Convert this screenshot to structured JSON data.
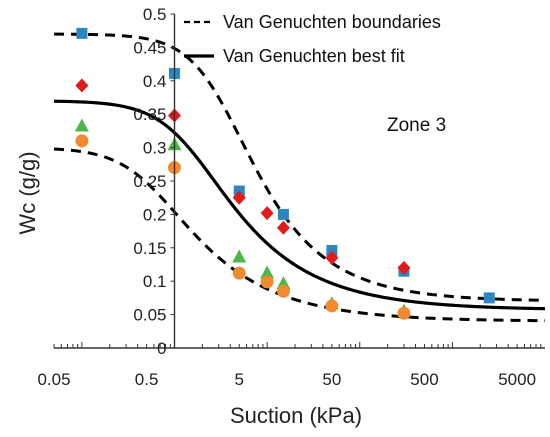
{
  "chart_data": {
    "type": "scatter",
    "title": "",
    "xlabel": "Suction (kPa)",
    "ylabel": "Wc (g/g)",
    "xscale": "log",
    "xlim": [
      0.05,
      10000
    ],
    "ylim": [
      0,
      0.5
    ],
    "xticks": [
      {
        "value": 0.05,
        "label": "0.05"
      },
      {
        "value": 0.5,
        "label": "0.5"
      },
      {
        "value": 5,
        "label": "5"
      },
      {
        "value": 50,
        "label": "50"
      },
      {
        "value": 500,
        "label": "500"
      },
      {
        "value": 5000,
        "label": "5000"
      }
    ],
    "yticks": [
      {
        "value": 0,
        "label": "0"
      },
      {
        "value": 0.05,
        "label": "0.05"
      },
      {
        "value": 0.1,
        "label": "0.1"
      },
      {
        "value": 0.15,
        "label": "0.15"
      },
      {
        "value": 0.2,
        "label": "0.2"
      },
      {
        "value": 0.25,
        "label": "0.25"
      },
      {
        "value": 0.3,
        "label": "0.3"
      },
      {
        "value": 0.35,
        "label": "0.35"
      },
      {
        "value": 0.4,
        "label": "0.4"
      },
      {
        "value": 0.45,
        "label": "0.45"
      },
      {
        "value": 0.5,
        "label": "0.5"
      }
    ],
    "y_axis_at_x": 1,
    "grid": false,
    "legend_position": "top-right",
    "legend": [
      {
        "label": "Van Genuchten boundaries",
        "style": "dashed",
        "color": "#000000"
      },
      {
        "label": "Van Genuchten best fit",
        "style": "solid",
        "color": "#000000"
      }
    ],
    "annotation": "Zone 3",
    "lines": [
      {
        "style": "dashed",
        "role": "upper",
        "theta_r": 0.07,
        "theta_s": 0.47,
        "alpha": 0.32,
        "n": 1.7
      },
      {
        "style": "solid",
        "role": "fit",
        "theta_r": 0.057,
        "theta_s": 0.37,
        "alpha": 0.7,
        "n": 1.58
      },
      {
        "style": "dashed",
        "role": "lower",
        "theta_r": 0.04,
        "theta_s": 0.3,
        "alpha": 1.8,
        "n": 1.58
      }
    ],
    "series": [
      {
        "marker": "square",
        "color": "#2e86c1",
        "points": [
          [
            0.1,
            0.471
          ],
          [
            1,
            0.411
          ],
          [
            5,
            0.235
          ],
          [
            15,
            0.2
          ],
          [
            50,
            0.146
          ],
          [
            300,
            0.115
          ],
          [
            2500,
            0.075
          ]
        ]
      },
      {
        "marker": "diamond",
        "color": "#e31a1c",
        "points": [
          [
            0.1,
            0.393
          ],
          [
            1,
            0.348
          ],
          [
            5,
            0.225
          ],
          [
            10,
            0.202
          ],
          [
            15,
            0.18
          ],
          [
            50,
            0.135
          ],
          [
            300,
            0.12
          ]
        ]
      },
      {
        "marker": "triangle",
        "color": "#4cb848",
        "points": [
          [
            0.1,
            0.333
          ],
          [
            1,
            0.305
          ],
          [
            5,
            0.137
          ],
          [
            10,
            0.113
          ],
          [
            15,
            0.097
          ],
          [
            50,
            0.067
          ],
          [
            300,
            0.056
          ]
        ]
      },
      {
        "marker": "circle",
        "color": "#f28b30",
        "points": [
          [
            0.1,
            0.31
          ],
          [
            1,
            0.27
          ],
          [
            5,
            0.112
          ],
          [
            10,
            0.099
          ],
          [
            15,
            0.085
          ],
          [
            50,
            0.063
          ],
          [
            300,
            0.052
          ]
        ]
      }
    ]
  }
}
